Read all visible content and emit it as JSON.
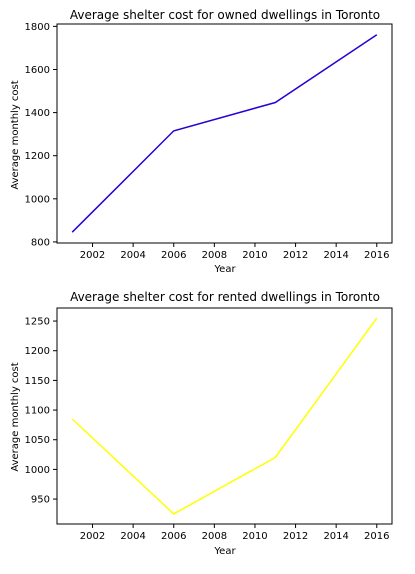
{
  "chart_data": [
    {
      "type": "line",
      "title": "Average shelter cost for owned dwellings in Toronto",
      "xlabel": "Year",
      "ylabel": "Average monthly cost",
      "x": [
        2001,
        2006,
        2011,
        2016
      ],
      "series": [
        {
          "values": [
            845,
            1315,
            1447,
            1761
          ],
          "color": "#2a00d6"
        }
      ],
      "xlim": [
        2000.25,
        2016.75
      ],
      "ylim": [
        795,
        1811
      ],
      "xticks": [
        2002,
        2004,
        2006,
        2008,
        2010,
        2012,
        2014,
        2016
      ],
      "yticks": [
        800,
        1000,
        1200,
        1400,
        1600,
        1800
      ],
      "grid": false
    },
    {
      "type": "line",
      "title": "Average shelter cost for rented dwellings in Toronto",
      "xlabel": "Year",
      "ylabel": "Average monthly cost",
      "x": [
        2001,
        2006,
        2011,
        2016
      ],
      "series": [
        {
          "values": [
            1085,
            925,
            1020,
            1255
          ],
          "color": "#ffff00"
        }
      ],
      "xlim": [
        2000.25,
        2016.75
      ],
      "ylim": [
        908,
        1272
      ],
      "xticks": [
        2002,
        2004,
        2006,
        2008,
        2010,
        2012,
        2014,
        2016
      ],
      "yticks": [
        950,
        1000,
        1050,
        1100,
        1150,
        1200,
        1250
      ],
      "grid": false
    }
  ]
}
